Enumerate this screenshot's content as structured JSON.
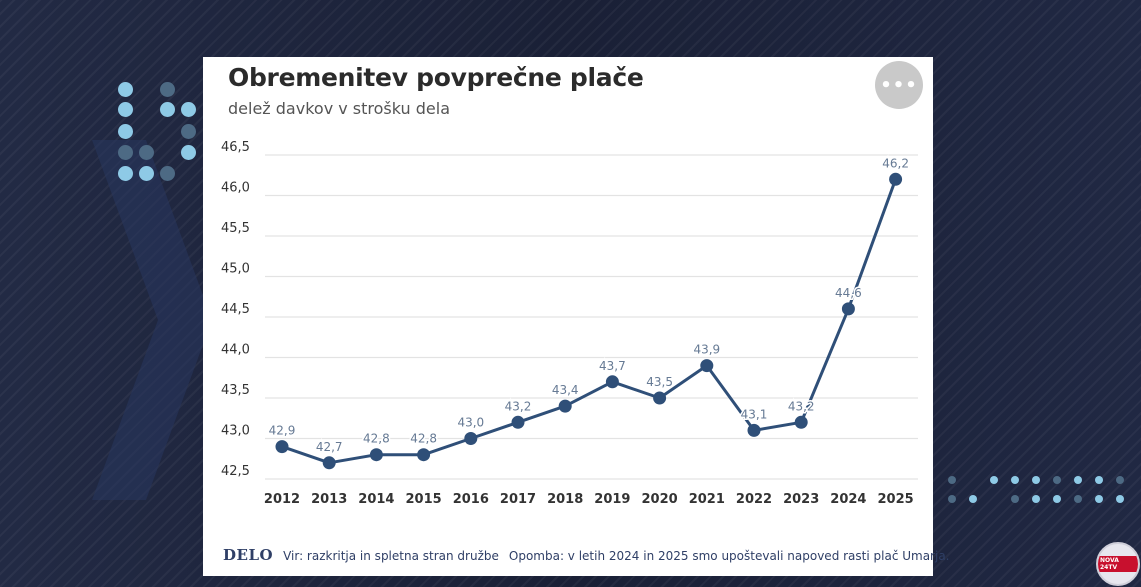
{
  "chart_data": {
    "type": "line",
    "title": "Obremenitev povprečne plače",
    "subtitle": "delež davkov v strošku dela",
    "x": [
      "2012",
      "2013",
      "2014",
      "2015",
      "2016",
      "2017",
      "2018",
      "2019",
      "2020",
      "2021",
      "2022",
      "2023",
      "2024",
      "2025"
    ],
    "values": [
      42.9,
      42.7,
      42.8,
      42.8,
      43.0,
      43.2,
      43.4,
      43.7,
      43.5,
      43.9,
      43.1,
      43.2,
      44.6,
      46.2
    ],
    "data_labels": [
      "42,9",
      "42,7",
      "42,8",
      "42,8",
      "43,0",
      "43,2",
      "43,4",
      "43,7",
      "43,5",
      "43,9",
      "43,1",
      "43,2",
      "44,6",
      "46,2"
    ],
    "yticks": [
      "42,5",
      "43,0",
      "43,5",
      "44,0",
      "44,5",
      "45,0",
      "45,5",
      "46,0",
      "46,5"
    ],
    "yticks_values": [
      42.5,
      43.0,
      43.5,
      44.0,
      44.5,
      45.0,
      45.5,
      46.0,
      46.5
    ],
    "ylim": [
      42.5,
      46.5
    ],
    "grid": true,
    "xlabel": "",
    "ylabel": "",
    "line_color": "#2f4f78"
  },
  "more_button_label": "•••",
  "footer": {
    "logo": "DELO",
    "source": "Vir: razkritja in spletna stran družbe",
    "note": "Opomba: v letih 2024 in 2025 smo upoštevali napoved rasti plač Umarja."
  },
  "channel_badge": "NOVA 24TV",
  "colors": {
    "background": "#1b2238",
    "card": "#ffffff",
    "accent_dots": "#8ecae6"
  }
}
